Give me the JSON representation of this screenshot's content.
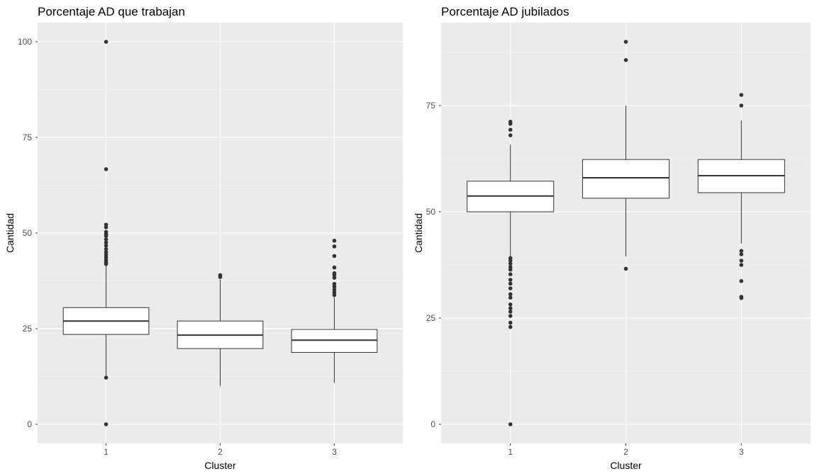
{
  "chart_data": [
    {
      "type": "box",
      "title": "Porcentaje AD que trabajan",
      "xlabel": "Cluster",
      "ylabel": "Cantidad",
      "ylim": [
        -5,
        105
      ],
      "yticks": [
        0,
        25,
        50,
        75,
        100
      ],
      "grid": true,
      "categories": [
        "1",
        "2",
        "3"
      ],
      "boxes": [
        {
          "category": "1",
          "whisker_low": 12.5,
          "q1": 23.5,
          "median": 27,
          "q3": 30.5,
          "whisker_high": 41.5,
          "outliers": [
            100,
            66.7,
            52.2,
            51.5,
            50.3,
            49.7,
            49.2,
            48.3,
            47.5,
            46.7,
            45.8,
            45,
            44.3,
            43.6,
            42.9,
            42.3,
            41.9,
            12.2,
            0
          ]
        },
        {
          "category": "2",
          "whisker_low": 10,
          "q1": 19.8,
          "median": 23.3,
          "q3": 27,
          "whisker_high": 37.8,
          "outliers": [
            39,
            38.5
          ]
        },
        {
          "category": "3",
          "whisker_low": 10.8,
          "q1": 18.8,
          "median": 22,
          "q3": 24.8,
          "whisker_high": 33.2,
          "outliers": [
            48,
            46.5,
            44,
            41,
            39.5,
            39,
            38.3,
            36.7,
            36,
            35.2,
            34.5,
            33.8
          ]
        }
      ]
    },
    {
      "type": "box",
      "title": "Porcentaje AD jubilados",
      "xlabel": "Cluster",
      "ylabel": "Cantidad",
      "ylim": [
        -4.5,
        94.5
      ],
      "yticks": [
        0,
        25,
        50,
        75
      ],
      "grid": true,
      "categories": [
        "1",
        "2",
        "3"
      ],
      "boxes": [
        {
          "category": "1",
          "whisker_low": 39.5,
          "q1": 50,
          "median": 53.7,
          "q3": 57.2,
          "whisker_high": 65.8,
          "outliers": [
            71.2,
            70.7,
            69.3,
            68,
            39.1,
            38.5,
            37.8,
            37,
            36.4,
            35.3,
            34,
            33.1,
            32,
            30.6,
            29.8,
            28.2,
            27.3,
            26.5,
            25.5,
            23.9,
            22.9,
            0
          ]
        },
        {
          "category": "2",
          "whisker_low": 39.5,
          "q1": 53.2,
          "median": 58,
          "q3": 62.3,
          "whisker_high": 75,
          "outliers": [
            90,
            85.7,
            36.6
          ]
        },
        {
          "category": "3",
          "whisker_low": 42.5,
          "q1": 54.5,
          "median": 58.5,
          "q3": 62.3,
          "whisker_high": 71.5,
          "outliers": [
            77.5,
            75,
            40.8,
            40,
            38.5,
            37.5,
            33.7,
            30,
            29.7
          ]
        }
      ]
    }
  ]
}
